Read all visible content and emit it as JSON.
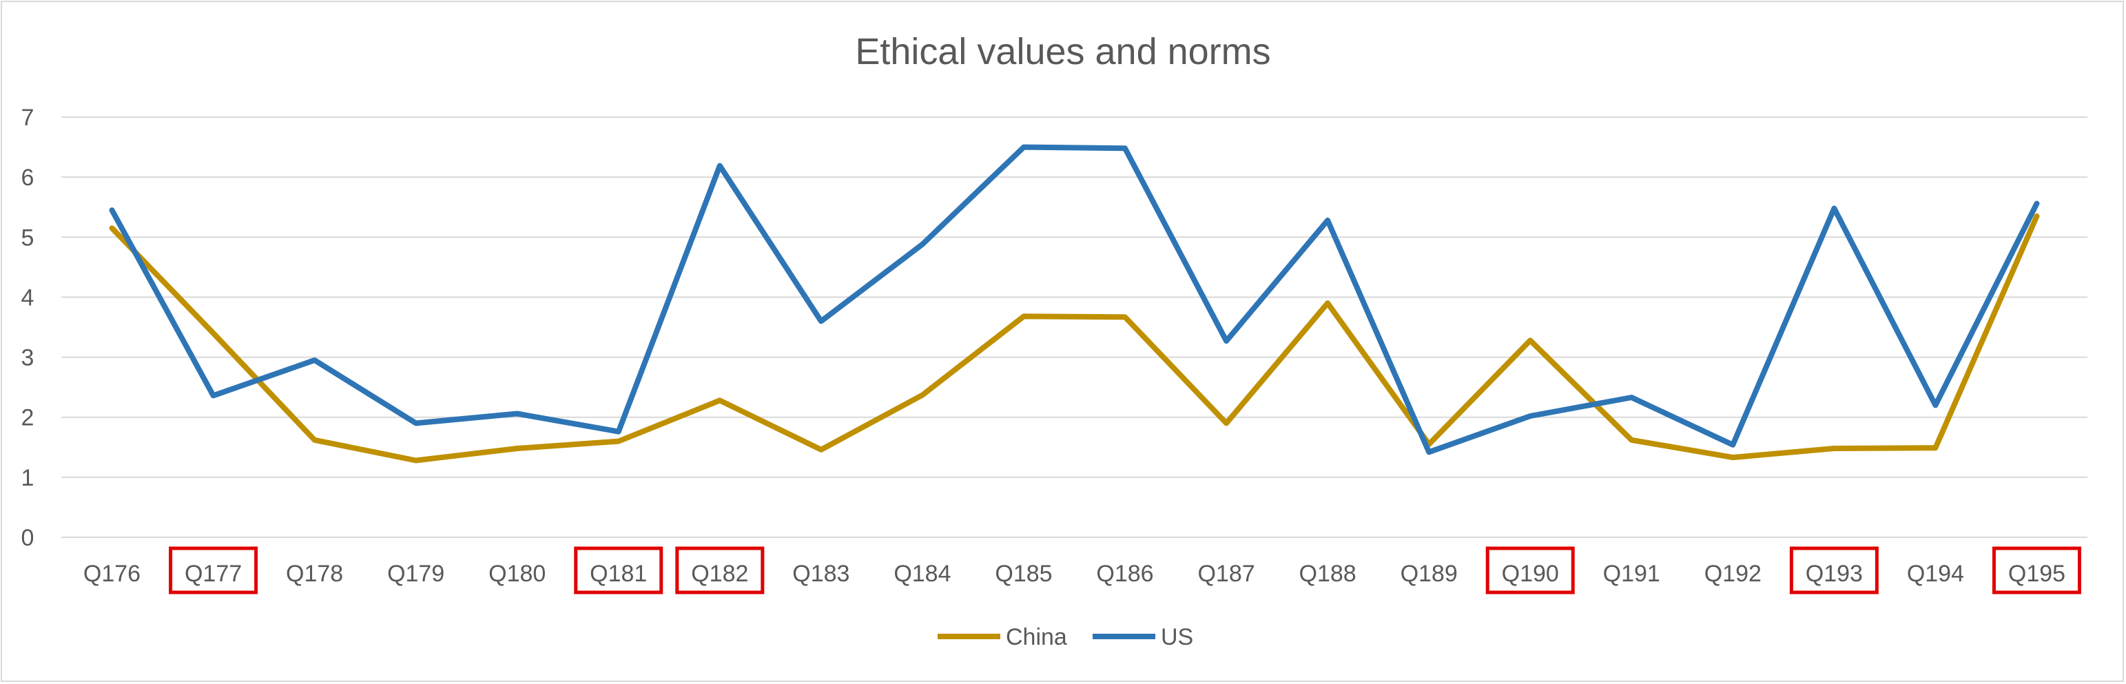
{
  "chart_data": {
    "type": "line",
    "title": "Ethical values and norms",
    "xlabel": "",
    "ylabel": "",
    "ylim": [
      0,
      7
    ],
    "yticks": [
      0,
      1,
      2,
      3,
      4,
      5,
      6,
      7
    ],
    "grid": true,
    "legend_position": "bottom",
    "categories": [
      "Q176",
      "Q177",
      "Q178",
      "Q179",
      "Q180",
      "Q181",
      "Q182",
      "Q183",
      "Q184",
      "Q185",
      "Q186",
      "Q187",
      "Q188",
      "Q189",
      "Q190",
      "Q191",
      "Q192",
      "Q193",
      "Q194",
      "Q195"
    ],
    "highlighted_categories": [
      "Q177",
      "Q181",
      "Q182",
      "Q190",
      "Q193",
      "Q195"
    ],
    "series": [
      {
        "name": "China",
        "color": "#BF9000",
        "values": [
          5.15,
          3.4,
          1.62,
          1.28,
          1.48,
          1.6,
          2.28,
          1.46,
          2.37,
          3.68,
          3.67,
          1.9,
          3.9,
          1.55,
          3.28,
          1.62,
          1.33,
          1.48,
          1.49,
          5.35
        ]
      },
      {
        "name": "US",
        "color": "#2E75B6",
        "values": [
          5.45,
          2.36,
          2.95,
          1.9,
          2.06,
          1.76,
          6.19,
          3.6,
          4.88,
          6.5,
          6.48,
          3.27,
          5.28,
          1.42,
          2.02,
          2.33,
          1.54,
          5.48,
          2.2,
          5.56
        ]
      }
    ]
  },
  "colors": {
    "highlight": "#E00000",
    "grid": "#d9d9d9",
    "text": "#595959"
  }
}
